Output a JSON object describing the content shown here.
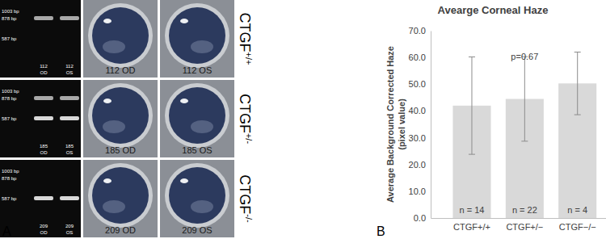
{
  "chart_data": {
    "type": "bar",
    "title": "Avearge Corneal Haze",
    "ylabel": [
      "Average Background Corrected Haze",
      "(pixel value)"
    ],
    "categories": [
      "CTGF+/+",
      "CTGF+/−",
      "CTGF−/−"
    ],
    "values": [
      42.0,
      44.5,
      50.3
    ],
    "errors": [
      18.2,
      15.8,
      11.7
    ],
    "sample_sizes": [
      "n = 14",
      "n = 22",
      "n = 4"
    ],
    "annotations": [
      "p=0.67"
    ],
    "color": "#d9d9d9",
    "ylim": [
      0,
      70
    ],
    "yticks": [
      {
        "value": 0,
        "label": "0.0"
      },
      {
        "value": 10,
        "label": "10.0"
      },
      {
        "value": 20,
        "label": "20.0"
      },
      {
        "value": 30,
        "label": "30.0"
      },
      {
        "value": 40,
        "label": "40.0"
      },
      {
        "value": 50,
        "label": "50.0"
      },
      {
        "value": 60,
        "label": "60.0"
      },
      {
        "value": 70,
        "label": "70.0"
      }
    ],
    "grid": false
  },
  "figure": {
    "panel_labels": [
      "A",
      "B"
    ],
    "rows": [
      {
        "gene": "CTGF",
        "allele": "+/+",
        "ladder": [
          "1003 bp",
          "878 bp",
          "587 bp"
        ],
        "lanes": [
          [
            "112",
            "OD"
          ],
          [
            "112",
            "OS"
          ]
        ],
        "photos": [
          "112 OD",
          "112 OS"
        ]
      },
      {
        "gene": "CTGF",
        "allele": "+/-",
        "ladder": [
          "1003 bp",
          "878 bp",
          "587 bp"
        ],
        "lanes": [
          [
            "185",
            "OD"
          ],
          [
            "185",
            "OS"
          ]
        ],
        "photos": [
          "185 OD",
          "185 OS"
        ]
      },
      {
        "gene": "CTGF",
        "allele": "-/-",
        "ladder": [
          "1003 bp",
          "878 bp",
          "587 bp"
        ],
        "lanes": [
          [
            "209",
            "OD"
          ],
          [
            "209",
            "OS"
          ]
        ],
        "photos": [
          "209 OD",
          "209 OS"
        ]
      }
    ]
  }
}
